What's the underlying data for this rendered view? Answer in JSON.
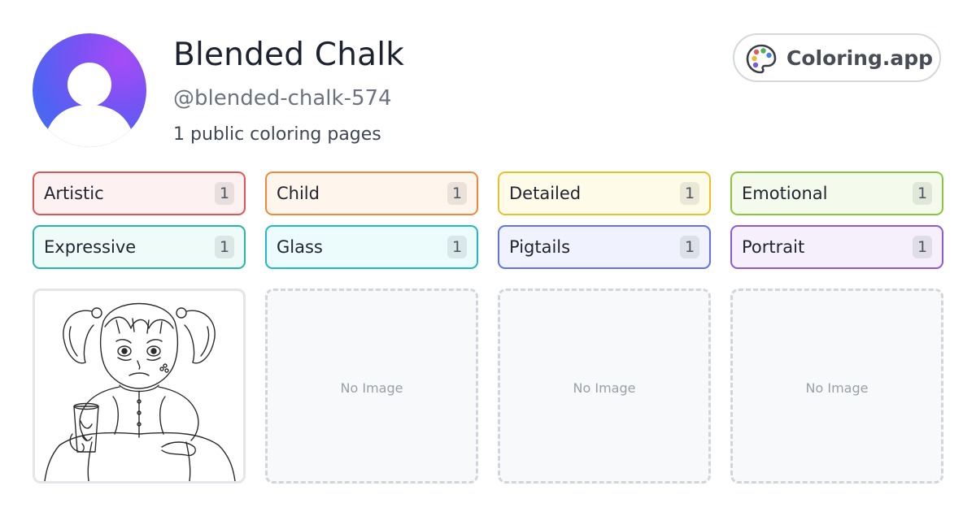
{
  "profile": {
    "name": "Blended Chalk",
    "handle": "@blended-chalk-574",
    "pages_count": "1 public coloring pages",
    "avatar_icon": "user-silhouette-icon"
  },
  "brand": {
    "icon": "palette-icon",
    "label": "Coloring.app"
  },
  "tags": [
    {
      "label": "Artistic",
      "count": "1",
      "border": "#e05555",
      "bg": "#fdf1f1"
    },
    {
      "label": "Child",
      "count": "1",
      "border": "#ef8a3a",
      "bg": "#fef5ec"
    },
    {
      "label": "Detailed",
      "count": "1",
      "border": "#e8c12e",
      "bg": "#fefbe9"
    },
    {
      "label": "Emotional",
      "count": "1",
      "border": "#8cc63f",
      "bg": "#f4fbec"
    },
    {
      "label": "Expressive",
      "count": "1",
      "border": "#2ab4a8",
      "bg": "#eefbf8"
    },
    {
      "label": "Glass",
      "count": "1",
      "border": "#22b8c4",
      "bg": "#ecfbfc"
    },
    {
      "label": "Pigtails",
      "count": "1",
      "border": "#6372e8",
      "bg": "#f0f2fd"
    },
    {
      "label": "Portrait",
      "count": "1",
      "border": "#8a5ad8",
      "bg": "#f5f0fc"
    }
  ],
  "cards": [
    {
      "type": "image",
      "alt": "coloring page of a sad little girl with pigtails holding a glass"
    },
    {
      "type": "empty",
      "label": "No Image"
    },
    {
      "type": "empty",
      "label": "No Image"
    },
    {
      "type": "empty",
      "label": "No Image"
    }
  ]
}
